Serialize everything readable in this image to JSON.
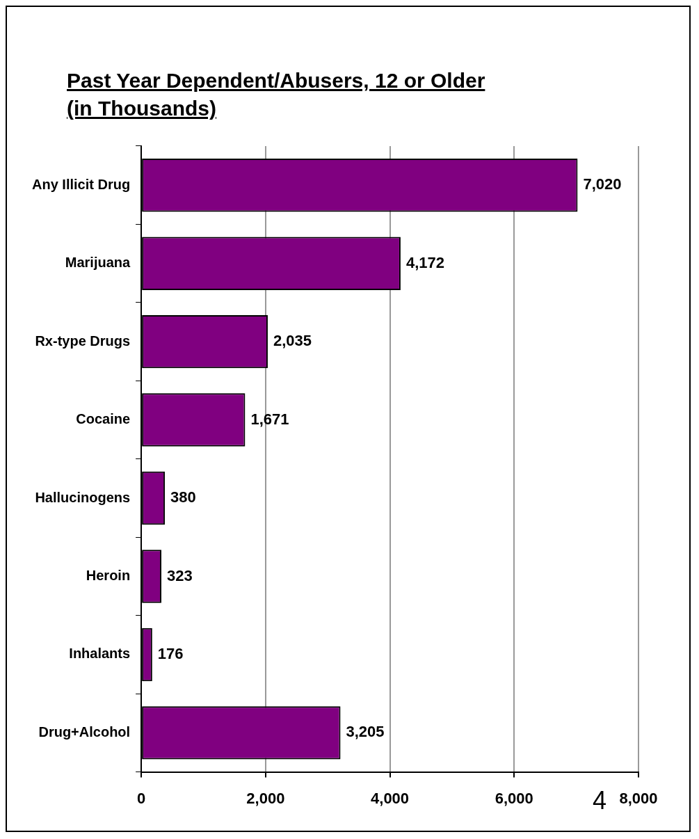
{
  "chart_data": {
    "type": "bar",
    "orientation": "horizontal",
    "title": "Past Year Dependent/Abusers, 12 or Older\n(in Thousands)",
    "categories": [
      "Any Illicit Drug",
      "Marijuana",
      "Rx-type Drugs",
      "Cocaine",
      "Hallucinogens",
      "Heroin",
      "Inhalants",
      "Drug+Alcohol"
    ],
    "values": [
      7020,
      4172,
      2035,
      1671,
      380,
      323,
      176,
      3205
    ],
    "value_labels": [
      "7,020",
      "4,172",
      "2,035",
      "1,671",
      "380",
      "323",
      "176",
      "3,205"
    ],
    "color": "#800080",
    "xlim": [
      0,
      8000
    ],
    "xticks": [
      {
        "value": 0,
        "label": "0"
      },
      {
        "value": 2000,
        "label": "2,000"
      },
      {
        "value": 4000,
        "label": "4,000"
      },
      {
        "value": 6000,
        "label": "6,000"
      },
      {
        "value": 8000,
        "label": "8,000"
      }
    ],
    "grid": "x",
    "annotations": [
      "4"
    ]
  }
}
